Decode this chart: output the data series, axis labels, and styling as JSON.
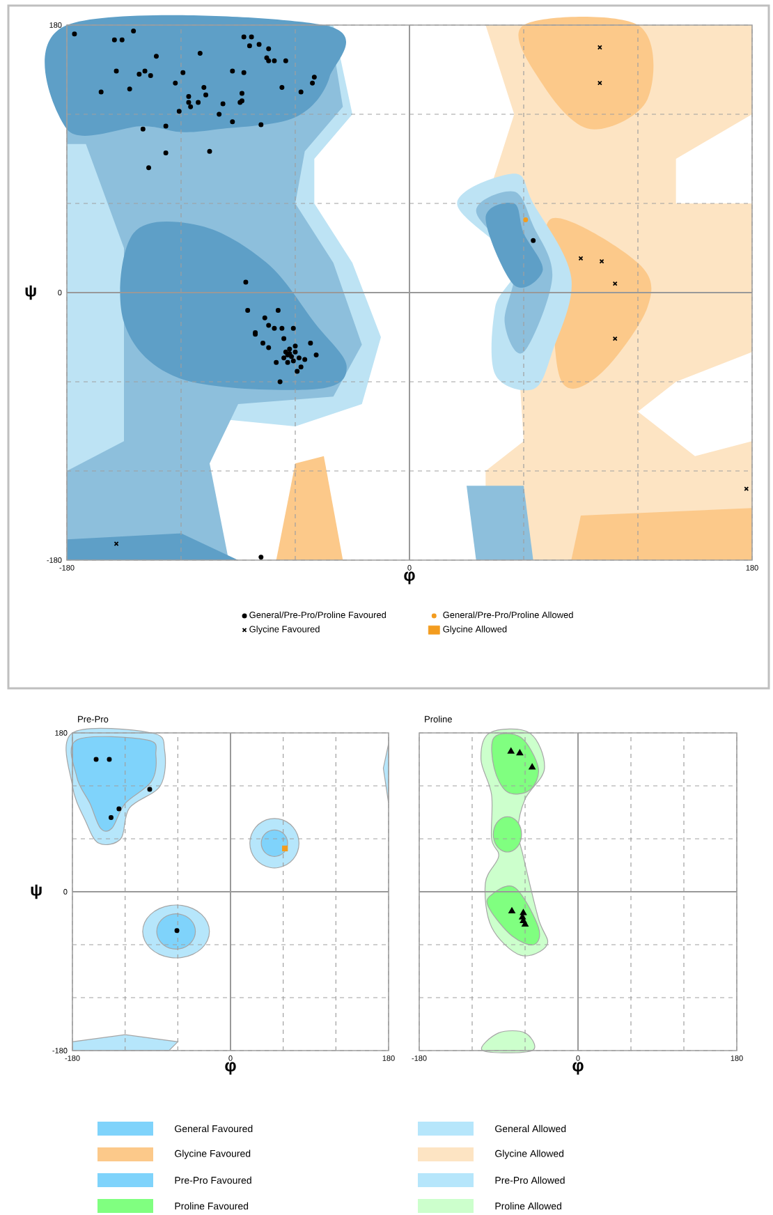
{
  "chart_data": [
    {
      "type": "scatter",
      "xlabel": "φ",
      "ylabel": "ψ",
      "xlim": [
        -180,
        180
      ],
      "ylim": [
        -180,
        180
      ],
      "xticks": [
        -180,
        {
          "value": -120,
          "label": null
        },
        {
          "value": -60,
          "label": null
        },
        0,
        {
          "value": 60,
          "label": null
        },
        {
          "value": 120,
          "label": null
        },
        180
      ],
      "yticks": [
        -180,
        {
          "value": -120,
          "label": null
        },
        {
          "value": -60,
          "label": null
        },
        0,
        {
          "value": 60,
          "label": null
        },
        {
          "value": 120,
          "label": null
        },
        180
      ],
      "grid": true,
      "legend": "bottom",
      "series": [
        {
          "name": "General/Pre-Pro/Proline Favoured",
          "color": "#000000",
          "marker": "circle",
          "x": [
            -176,
            -155,
            -151,
            -145,
            -133,
            -110,
            -87,
            -83,
            -84,
            -79,
            -74,
            -75,
            -74,
            -65,
            -71,
            -154,
            -142,
            -139,
            -136,
            -119,
            -93,
            -87,
            -162,
            -147,
            -123,
            -116,
            -108,
            -107,
            -111,
            -116,
            -115,
            -98,
            -88,
            -88,
            -89,
            -67,
            -57,
            -51,
            -50,
            -121,
            -100,
            -93,
            -78,
            -140,
            -128,
            -128,
            -105,
            -137,
            -86,
            -85,
            -76,
            -69,
            -74,
            -71,
            -81,
            -81,
            -67,
            -61,
            -77,
            -74,
            -64,
            -63,
            -52,
            -49,
            -68,
            -59,
            -57,
            -70,
            -55,
            -66,
            -60,
            -65,
            -62,
            -60,
            -63,
            -66,
            -58,
            -61,
            -64,
            -78,
            65
          ],
          "values": [
            174,
            170,
            170,
            176,
            159,
            161,
            172,
            172,
            166,
            167,
            164,
            158,
            156,
            156,
            156,
            149,
            147,
            149,
            146,
            148,
            149,
            148,
            135,
            137,
            141,
            132,
            138,
            133,
            128,
            128,
            125,
            127,
            134,
            129,
            128,
            138,
            135,
            141,
            145,
            122,
            120,
            115,
            113,
            110,
            112,
            94,
            95,
            84,
            7,
            -12,
            -17,
            -12,
            -22,
            -24,
            -27,
            -28,
            -24,
            -24,
            -34,
            -37,
            -42,
            -41,
            -34,
            -42,
            -60,
            -53,
            -50,
            -47,
            -45,
            -31,
            -36,
            -40,
            -43,
            -40,
            -38,
            -44,
            -44,
            -46,
            -47,
            -178,
            35
          ]
        },
        {
          "name": "General/Pre-Pro/Proline Allowed",
          "color": "#f39c1f",
          "marker": "circle",
          "x": [
            61
          ],
          "values": [
            49
          ]
        },
        {
          "name": "Glycine Favoured",
          "color": "#000000",
          "marker": "cross",
          "x": [
            100,
            100,
            90,
            101,
            108,
            108,
            177,
            -154
          ],
          "values": [
            165,
            141,
            23,
            21,
            6,
            -31,
            -132,
            -169
          ]
        },
        {
          "name": "Glycine Allowed",
          "color": "#f39c1f",
          "marker": "cross"
        }
      ]
    },
    {
      "type": "scatter",
      "title": "Pre-Pro",
      "xlabel": "φ",
      "ylabel": "ψ",
      "xlim": [
        -180,
        180
      ],
      "ylim": [
        -180,
        180
      ],
      "xticks": [
        -180,
        {
          "value": -120,
          "label": null
        },
        {
          "value": -60,
          "label": null
        },
        0,
        {
          "value": 60,
          "label": null
        },
        {
          "value": 120,
          "label": null
        },
        180
      ],
      "yticks": [
        -180,
        {
          "value": -120,
          "label": null
        },
        {
          "value": -60,
          "label": null
        },
        0,
        {
          "value": 60,
          "label": null
        },
        {
          "value": 120,
          "label": null
        },
        180
      ],
      "grid": true,
      "series": [
        {
          "color": "#000000",
          "marker": "circle",
          "x": [
            -153,
            -138,
            -92,
            -127,
            -136,
            -61
          ],
          "values": [
            150,
            150,
            116,
            94,
            84,
            -44
          ]
        },
        {
          "color": "#f39c1f",
          "marker": "square",
          "x": [
            62
          ],
          "values": [
            49
          ]
        }
      ]
    },
    {
      "type": "scatter",
      "title": "Proline",
      "xlabel": "φ",
      "xlim": [
        -180,
        180
      ],
      "ylim": [
        -180,
        180
      ],
      "xticks": [
        -180,
        {
          "value": -120,
          "label": null
        },
        {
          "value": -60,
          "label": null
        },
        0,
        {
          "value": 60,
          "label": null
        },
        {
          "value": 120,
          "label": null
        },
        180
      ],
      "yticks": [
        {
          "value": -180,
          "label": null
        },
        {
          "value": -120,
          "label": null
        },
        {
          "value": -60,
          "label": null
        },
        {
          "value": 0,
          "label": null
        },
        {
          "value": 60,
          "label": null
        },
        {
          "value": 120,
          "label": null
        },
        {
          "value": 180,
          "label": null
        }
      ],
      "grid": true,
      "tick_labels": "x",
      "series": [
        {
          "color": "#000000",
          "marker": "triangle",
          "x": [
            -76,
            -66,
            -52,
            -75,
            -62,
            -63,
            -62,
            -60
          ],
          "values": [
            159,
            157,
            141,
            -22,
            -24,
            -29,
            -33,
            -37
          ]
        }
      ]
    },
    {
      "type": "other",
      "annotations": [
        "General Favoured",
        "General Allowed",
        "Glycine Favoured",
        "Glycine Allowed",
        "Pre-Pro Favoured",
        "Pre-Pro Allowed",
        "Proline Favoured",
        "Proline Allowed"
      ]
    }
  ]
}
